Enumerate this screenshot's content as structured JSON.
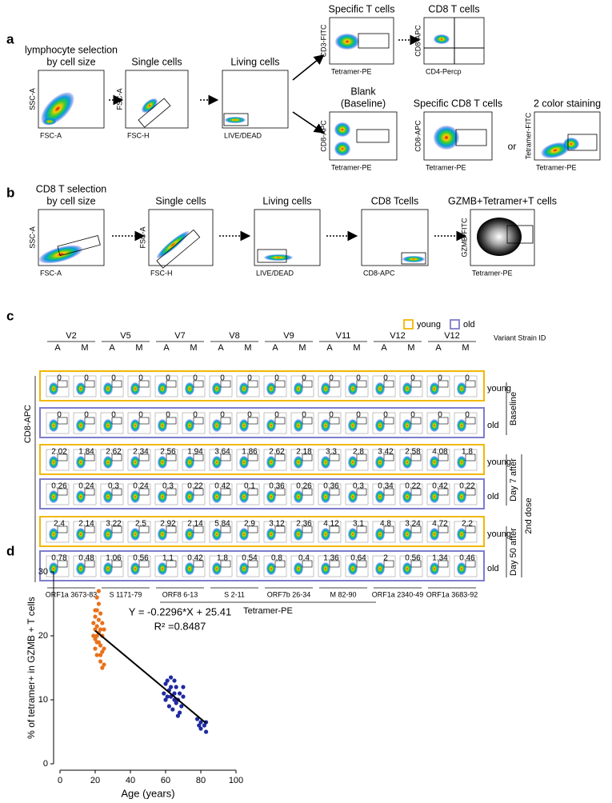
{
  "panel_a": {
    "label": "a",
    "connector": "or",
    "plots": [
      {
        "title": [
          "lymphocyte selection",
          "by cell size"
        ],
        "x_label": "FSC-A",
        "y_label": "SSC-A"
      },
      {
        "title": [
          "Single cells"
        ],
        "x_label": "FSC-H",
        "y_label": "FSC-A"
      },
      {
        "title": [
          "Living cells"
        ],
        "x_label": "LIVE/DEAD"
      },
      {
        "title": [
          "Specific  T cells"
        ],
        "x_label": "Tetramer-PE",
        "y_label": "CD3-FITC"
      },
      {
        "title": [
          "CD8 T cells"
        ],
        "x_label": "CD4-Percp",
        "y_label": "CD8-APC"
      },
      {
        "title": [
          "Blank",
          "(Baseline)"
        ],
        "x_label": "Tetramer-PE",
        "y_label": "CD8-APC"
      },
      {
        "title": [
          "Specific CD8 T cells"
        ],
        "x_label": "Tetramer-PE",
        "y_label": "CD8-APC"
      },
      {
        "title": [
          "2 color staining"
        ],
        "x_label": "Tetramer-PE",
        "y_label": "Tetramer-FITC"
      }
    ]
  },
  "panel_b": {
    "label": "b",
    "plots": [
      {
        "title": [
          "CD8 T selection",
          "by cell size"
        ],
        "x_label": "FSC-A",
        "y_label": "SSC-A"
      },
      {
        "title": [
          "Single cells"
        ],
        "x_label": "FSC-H",
        "y_label": "FSC-A"
      },
      {
        "title": [
          "Living cells"
        ],
        "x_label": "LIVE/DEAD"
      },
      {
        "title": [
          "CD8 Tcells"
        ],
        "x_label": "CD8-APC"
      },
      {
        "title": [
          "GZMB+Tetramer+T cells"
        ],
        "x_label": "Tetramer-PE",
        "y_label": "GZMB-FITC"
      }
    ]
  },
  "panel_c": {
    "label": "c",
    "legend": [
      "young",
      "old"
    ],
    "variant_header": "Variant Strain ID",
    "variants": [
      "V2",
      "V5",
      "V7",
      "V8",
      "V9",
      "V11",
      "V12",
      "V12"
    ],
    "subcolumns": [
      "A",
      "M"
    ],
    "y_label": "CD8-APC",
    "x_label": "Tetramer-PE",
    "epitopes": [
      "ORF1a 3673-83",
      "S 1171-79",
      "ORF8 6-13",
      "S 2-11",
      "ORF7b 26-34",
      "M 82-90",
      "ORF1a 2340-49",
      "ORF1a 3683-92"
    ],
    "timepoints": [
      "Baseline",
      "Day 7 after",
      "2nd dose",
      "Day 50 after"
    ],
    "rows": [
      {
        "group": "young",
        "values": [
          0,
          0,
          0,
          0,
          0,
          0,
          0,
          0,
          0,
          0,
          0,
          0,
          0,
          0,
          0,
          0
        ]
      },
      {
        "group": "old",
        "values": [
          0,
          0,
          0,
          0,
          0,
          0,
          0,
          0,
          0,
          0,
          0,
          0,
          0,
          0,
          0,
          0
        ]
      },
      {
        "group": "young",
        "values": [
          2.02,
          1.84,
          2.62,
          2.34,
          2.56,
          1.94,
          3.64,
          1.86,
          2.62,
          2.18,
          3.3,
          2.8,
          3.42,
          2.58,
          4.08,
          1.8
        ]
      },
      {
        "group": "old",
        "values": [
          0.26,
          0.24,
          0.3,
          0.24,
          0.3,
          0.22,
          0.42,
          0.1,
          0.36,
          0.26,
          0.36,
          0.3,
          0.34,
          0.22,
          0.42,
          0.22
        ]
      },
      {
        "group": "young",
        "values": [
          2.4,
          2.14,
          3.22,
          2.5,
          2.92,
          2.14,
          5.84,
          2.9,
          3.12,
          2.36,
          4.12,
          3.1,
          4.8,
          3.24,
          4.72,
          2.2
        ]
      },
      {
        "group": "old",
        "values": [
          0.78,
          0.48,
          1.06,
          0.56,
          1.1,
          0.42,
          1.8,
          0.54,
          0.8,
          0.4,
          1.36,
          0.64,
          2,
          0.56,
          1.34,
          0.46
        ]
      }
    ]
  },
  "chart_data": {
    "type": "scatter",
    "label": "d",
    "x_label": "Age (years)",
    "y_label": "% of tetramer+ in GZMB + T cells",
    "equation": "Y = -0.2296*X + 25.41",
    "r2": "R² =0.8487",
    "xlim": [
      0,
      100
    ],
    "ylim": [
      0,
      30
    ],
    "xticks": [
      0,
      20,
      40,
      60,
      80,
      100
    ],
    "yticks": [
      0,
      10,
      20,
      30
    ],
    "series": [
      {
        "color": "#e8711c",
        "x": [
          19,
          19,
          20,
          20,
          20,
          20,
          21,
          21,
          21,
          21,
          21,
          22,
          22,
          22,
          22,
          22,
          23,
          23,
          23,
          23,
          24,
          24,
          24,
          24,
          25,
          25,
          25,
          20,
          21,
          23
        ],
        "y": [
          20,
          22,
          18,
          19.5,
          21,
          23,
          20,
          21.5,
          24,
          26,
          17,
          19,
          20.5,
          22.5,
          25,
          27,
          16,
          18.5,
          21,
          23.5,
          15,
          17.5,
          20,
          22,
          15.5,
          18,
          21,
          24,
          19,
          17
        ]
      },
      {
        "color": "#1f2aa0",
        "x": [
          59,
          60,
          60,
          61,
          62,
          62,
          63,
          63,
          64,
          65,
          65,
          66,
          66,
          67,
          67,
          68,
          68,
          69,
          70,
          70,
          65,
          63,
          61,
          78,
          79,
          80,
          80,
          82,
          83,
          83
        ],
        "y": [
          11,
          12.5,
          10,
          13,
          11.5,
          9,
          12,
          10.5,
          8.5,
          11,
          13,
          9.5,
          12,
          10,
          7.5,
          11,
          8,
          9,
          10.5,
          12,
          10,
          13.5,
          10.5,
          7,
          6,
          6.5,
          5.5,
          6,
          5,
          6.5
        ]
      }
    ],
    "fit": {
      "color": "#000000",
      "x": [
        20,
        83
      ],
      "y": [
        20.8,
        6.35
      ]
    }
  }
}
